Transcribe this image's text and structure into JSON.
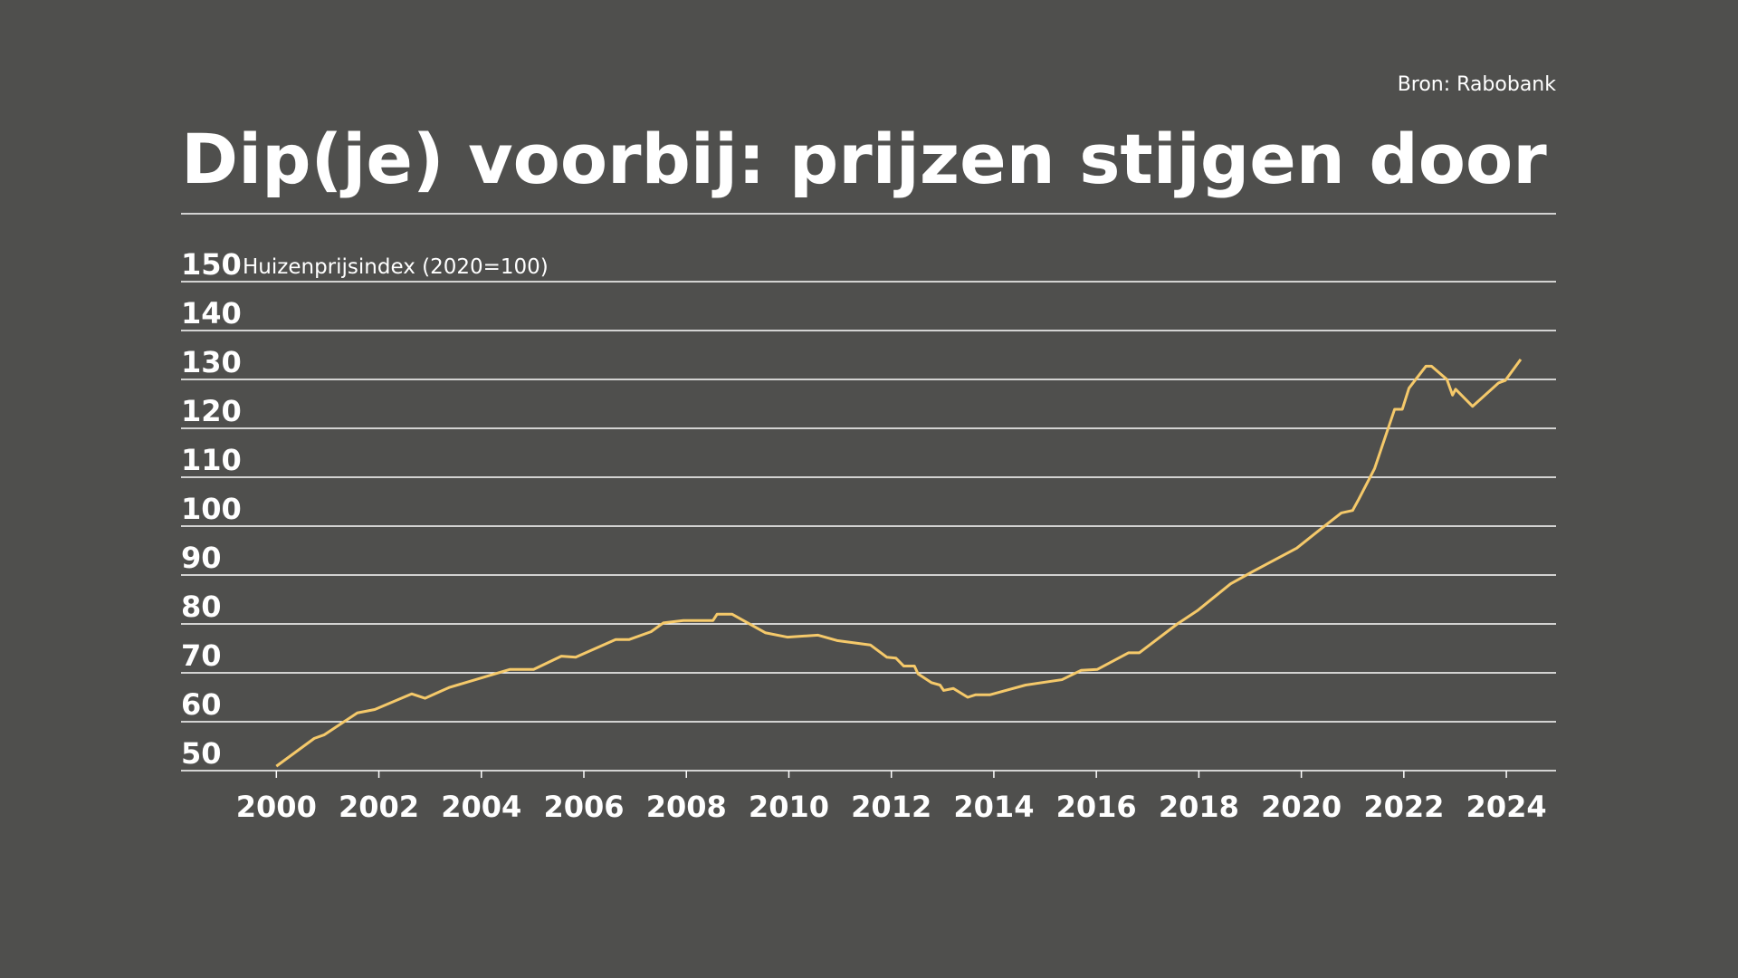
{
  "chart_data": {
    "type": "line",
    "title": "Dip(je) voorbij: prijzen stijgen door",
    "source": "Bron: Rabobank",
    "y_label": "Huizenprijsindex (2020=100)",
    "x": [
      2000,
      2000.74,
      2000.93,
      2001.58,
      2001.92,
      2002.64,
      2002.9,
      2003.37,
      2004.56,
      2005.02,
      2005.56,
      2005.84,
      2006.62,
      2006.88,
      2007.31,
      2007.55,
      2007.94,
      2008.52,
      2008.6,
      2008.89,
      2009.54,
      2009.97,
      2010.57,
      2010.94,
      2011.59,
      2011.91,
      2012.09,
      2012.24,
      2012.45,
      2012.52,
      2012.78,
      2012.95,
      2013.02,
      2013.21,
      2013.49,
      2013.64,
      2013.92,
      2014.62,
      2015.33,
      2015.7,
      2016.02,
      2016.63,
      2016.84,
      2017.58,
      2017.97,
      2018.62,
      2019.05,
      2019.91,
      2020.39,
      2020.78,
      2021.0,
      2021.12,
      2021.43,
      2021.82,
      2021.97,
      2022.1,
      2022.43,
      2022.54,
      2022.84,
      2022.95,
      2023.01,
      2023.34,
      2023.85,
      2023.98,
      2024.28
    ],
    "series": [
      {
        "color": "#f5c96a",
        "values": [
          50.9,
          56.6,
          57.3,
          61.8,
          62.5,
          65.7,
          64.8,
          67,
          70.7,
          70.7,
          73.4,
          73.2,
          76.8,
          76.8,
          78.4,
          80.2,
          80.7,
          80.7,
          82,
          82,
          78.2,
          77.3,
          77.7,
          76.6,
          75.7,
          73.2,
          73,
          71.4,
          71.4,
          69.8,
          68,
          67.5,
          66.4,
          66.8,
          65,
          65.5,
          65.5,
          67.5,
          68.6,
          70.5,
          70.7,
          74.1,
          74.1,
          80,
          82.7,
          88.2,
          90.7,
          95.5,
          99.5,
          102.7,
          103.2,
          105.5,
          111.8,
          123.9,
          123.9,
          128.2,
          132.7,
          132.7,
          130,
          126.8,
          128,
          124.5,
          129.3,
          129.8,
          134.1
        ]
      }
    ],
    "xlim": [
      1998.14,
      2024.97
    ],
    "xticks": [
      2000,
      2002,
      2004,
      2006,
      2008,
      2010,
      2012,
      2014,
      2016,
      2018,
      2020,
      2022,
      2024
    ],
    "ylim": [
      50,
      150
    ],
    "yticks": [
      50,
      60,
      70,
      80,
      90,
      100,
      110,
      120,
      130,
      140,
      150
    ],
    "grid": true
  }
}
